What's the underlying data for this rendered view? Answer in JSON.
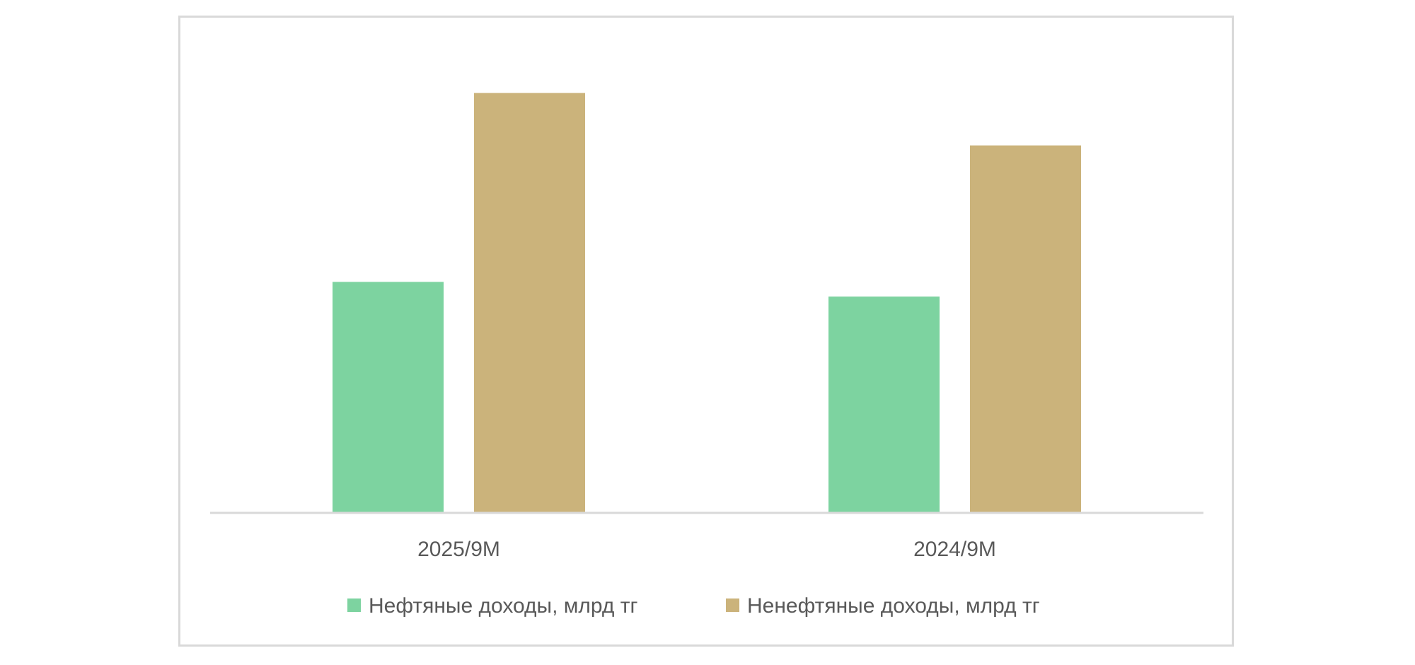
{
  "chart_data": {
    "type": "bar",
    "categories": [
      "2025/9M",
      "2024/9M"
    ],
    "series": [
      {
        "name": "Нефтяные доходы, млрд тг",
        "color": "#7dd3a0",
        "values": [
          5.5,
          5.15
        ]
      },
      {
        "name": "Ненефтяные доходы, млрд тг",
        "color": "#cbb37b",
        "values": [
          10.0,
          8.75
        ]
      }
    ],
    "ylim": [
      0,
      11
    ],
    "grid": false,
    "legend_position": "bottom"
  }
}
